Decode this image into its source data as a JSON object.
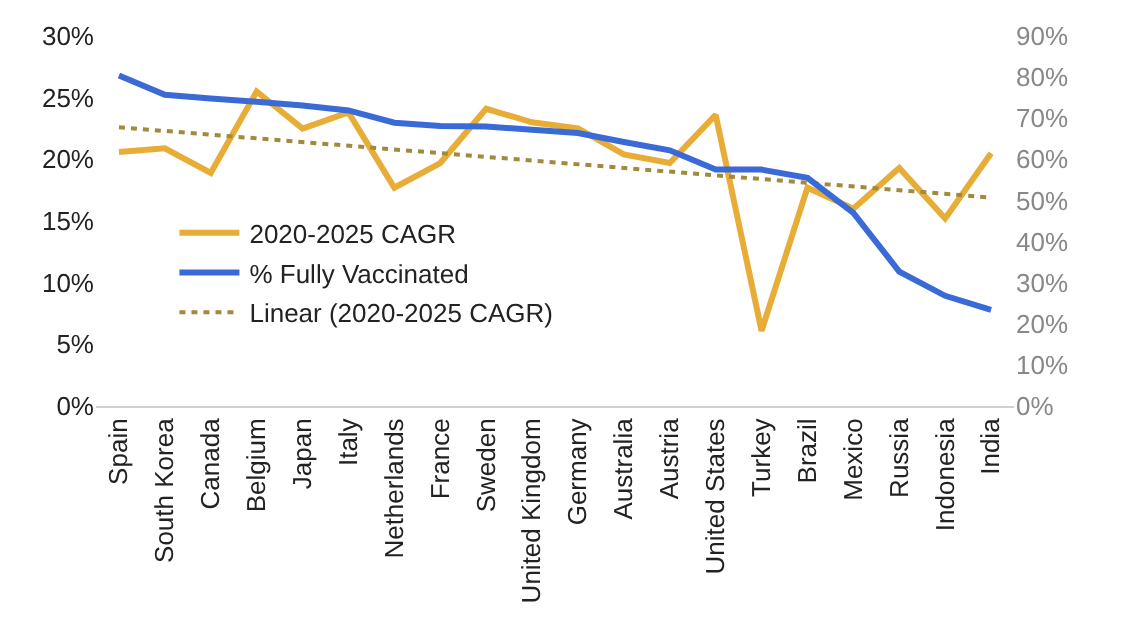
{
  "chart_data": {
    "type": "line",
    "categories": [
      "Spain",
      "South Korea",
      "Canada",
      "Belgium",
      "Japan",
      "Italy",
      "Netherlands",
      "France",
      "Sweden",
      "United Kingdom",
      "Germany",
      "Australia",
      "Austria",
      "United States",
      "Turkey",
      "Brazil",
      "Mexico",
      "Russia",
      "Indonesia",
      "India"
    ],
    "series": [
      {
        "name": "2020-2025 CAGR",
        "color": "#e8ad37",
        "values": [
          20.6,
          20.9,
          18.9,
          25.5,
          22.5,
          23.8,
          17.7,
          19.7,
          24.1,
          23.0,
          22.5,
          20.4,
          19.7,
          23.6,
          6.1,
          17.7,
          16.0,
          19.3,
          15.2,
          20.5
        ]
      },
      {
        "name": "% Fully Vaccinated",
        "color": "#3a6ad6",
        "axis": "y2",
        "values": [
          80.4,
          75.7,
          74.8,
          74.0,
          73.1,
          71.9,
          68.9,
          68.1,
          68.0,
          67.2,
          66.4,
          64.2,
          62.2,
          57.5,
          57.5,
          55.5,
          47.0,
          32.7,
          26.8,
          23.4
        ]
      },
      {
        "name": "Linear (2020-2025 CAGR)",
        "color": "#a08a3c",
        "type": "line",
        "line_style": "dotted",
        "x": [
          "Spain",
          "India"
        ],
        "values": [
          22.6,
          16.9
        ]
      }
    ],
    "ylim": [
      0,
      30
    ],
    "yticks": [
      {
        "value": 0,
        "label": "0%"
      },
      {
        "value": 5,
        "label": "5%"
      },
      {
        "value": 10,
        "label": "10%"
      },
      {
        "value": 15,
        "label": "15%"
      },
      {
        "value": 20,
        "label": "20%"
      },
      {
        "value": 25,
        "label": "25%"
      },
      {
        "value": 30,
        "label": "30%"
      }
    ],
    "y2lim": [
      0,
      90
    ],
    "y2ticks": [
      {
        "value": 0,
        "label": "0%"
      },
      {
        "value": 10,
        "label": "10%"
      },
      {
        "value": 20,
        "label": "20%"
      },
      {
        "value": 30,
        "label": "30%"
      },
      {
        "value": 40,
        "label": "40%"
      },
      {
        "value": 50,
        "label": "50%"
      },
      {
        "value": 60,
        "label": "60%"
      },
      {
        "value": 70,
        "label": "70%"
      },
      {
        "value": 80,
        "label": "80%"
      },
      {
        "value": 90,
        "label": "90%"
      }
    ],
    "grid": false,
    "legend": "left",
    "marker": "none",
    "line_style": "solid"
  }
}
